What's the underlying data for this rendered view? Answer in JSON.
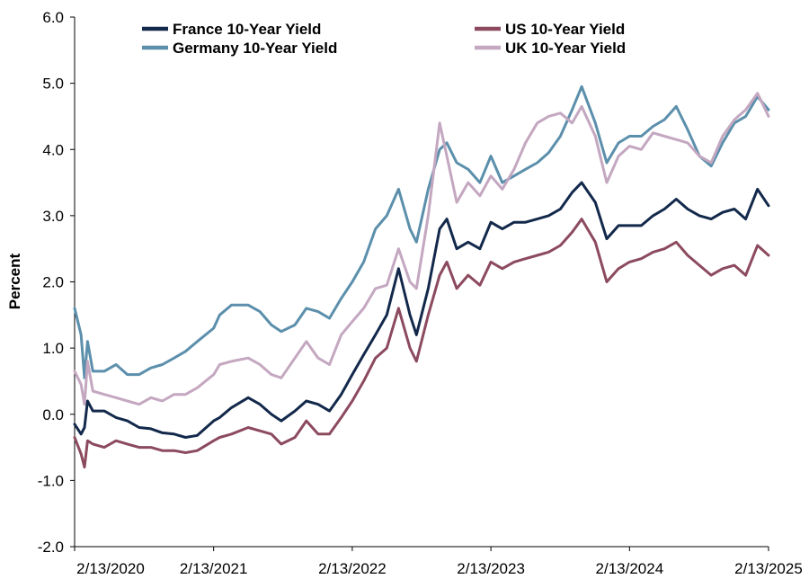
{
  "chart_data": {
    "type": "line",
    "title": "",
    "xlabel": "",
    "ylabel": "Percent",
    "ylim": [
      -2.0,
      6.0
    ],
    "y_ticks": [
      "-2.0",
      "-1.0",
      "0.0",
      "1.0",
      "2.0",
      "3.0",
      "4.0",
      "5.0",
      "6.0"
    ],
    "x_range": [
      "2020-02-13",
      "2025-02-13"
    ],
    "x_tick_labels": [
      "2/13/2020",
      "2/13/2021",
      "2/13/2022",
      "2/13/2023",
      "2/13/2024",
      "2/13/2025"
    ],
    "grid": false,
    "legend_position": "top",
    "series": [
      {
        "name": "France 10-Year Yield",
        "color": "#13294b",
        "points": [
          [
            "2020-02-13",
            -0.15
          ],
          [
            "2020-03-01",
            -0.3
          ],
          [
            "2020-03-10",
            -0.2
          ],
          [
            "2020-03-18",
            0.2
          ],
          [
            "2020-04-01",
            0.05
          ],
          [
            "2020-05-01",
            0.05
          ],
          [
            "2020-06-01",
            -0.05
          ],
          [
            "2020-07-01",
            -0.1
          ],
          [
            "2020-08-01",
            -0.2
          ],
          [
            "2020-09-01",
            -0.22
          ],
          [
            "2020-10-01",
            -0.28
          ],
          [
            "2020-11-01",
            -0.3
          ],
          [
            "2020-12-01",
            -0.35
          ],
          [
            "2021-01-01",
            -0.32
          ],
          [
            "2021-02-13",
            -0.1
          ],
          [
            "2021-03-01",
            -0.05
          ],
          [
            "2021-04-01",
            0.1
          ],
          [
            "2021-05-15",
            0.25
          ],
          [
            "2021-06-15",
            0.15
          ],
          [
            "2021-07-15",
            0.0
          ],
          [
            "2021-08-10",
            -0.1
          ],
          [
            "2021-09-15",
            0.05
          ],
          [
            "2021-10-15",
            0.2
          ],
          [
            "2021-11-15",
            0.15
          ],
          [
            "2021-12-15",
            0.05
          ],
          [
            "2022-01-15",
            0.3
          ],
          [
            "2022-02-13",
            0.6
          ],
          [
            "2022-03-15",
            0.9
          ],
          [
            "2022-04-15",
            1.2
          ],
          [
            "2022-05-15",
            1.5
          ],
          [
            "2022-06-15",
            2.2
          ],
          [
            "2022-07-15",
            1.5
          ],
          [
            "2022-08-01",
            1.2
          ],
          [
            "2022-09-01",
            1.9
          ],
          [
            "2022-10-01",
            2.8
          ],
          [
            "2022-10-20",
            2.95
          ],
          [
            "2022-11-15",
            2.5
          ],
          [
            "2022-12-15",
            2.6
          ],
          [
            "2023-01-15",
            2.5
          ],
          [
            "2023-02-13",
            2.9
          ],
          [
            "2023-03-15",
            2.8
          ],
          [
            "2023-04-15",
            2.9
          ],
          [
            "2023-05-15",
            2.9
          ],
          [
            "2023-06-15",
            2.95
          ],
          [
            "2023-07-15",
            3.0
          ],
          [
            "2023-08-15",
            3.1
          ],
          [
            "2023-09-15",
            3.35
          ],
          [
            "2023-10-10",
            3.5
          ],
          [
            "2023-11-15",
            3.2
          ],
          [
            "2023-12-15",
            2.65
          ],
          [
            "2024-01-15",
            2.85
          ],
          [
            "2024-02-13",
            2.85
          ],
          [
            "2024-03-15",
            2.85
          ],
          [
            "2024-04-15",
            3.0
          ],
          [
            "2024-05-15",
            3.1
          ],
          [
            "2024-06-15",
            3.25
          ],
          [
            "2024-07-15",
            3.1
          ],
          [
            "2024-08-15",
            3.0
          ],
          [
            "2024-09-15",
            2.95
          ],
          [
            "2024-10-15",
            3.05
          ],
          [
            "2024-11-15",
            3.1
          ],
          [
            "2024-12-15",
            2.95
          ],
          [
            "2025-01-15",
            3.4
          ],
          [
            "2025-02-13",
            3.15
          ]
        ]
      },
      {
        "name": "US 10-Year Yield",
        "color": "#8c4a5e",
        "points": [
          [
            "2020-02-13",
            -0.35
          ],
          [
            "2020-03-01",
            -0.6
          ],
          [
            "2020-03-10",
            -0.8
          ],
          [
            "2020-03-18",
            -0.4
          ],
          [
            "2020-04-01",
            -0.45
          ],
          [
            "2020-05-01",
            -0.5
          ],
          [
            "2020-06-01",
            -0.4
          ],
          [
            "2020-07-01",
            -0.45
          ],
          [
            "2020-08-01",
            -0.5
          ],
          [
            "2020-09-01",
            -0.5
          ],
          [
            "2020-10-01",
            -0.55
          ],
          [
            "2020-11-01",
            -0.55
          ],
          [
            "2020-12-01",
            -0.58
          ],
          [
            "2021-01-01",
            -0.55
          ],
          [
            "2021-02-13",
            -0.4
          ],
          [
            "2021-03-01",
            -0.35
          ],
          [
            "2021-04-01",
            -0.3
          ],
          [
            "2021-05-15",
            -0.2
          ],
          [
            "2021-06-15",
            -0.25
          ],
          [
            "2021-07-15",
            -0.3
          ],
          [
            "2021-08-10",
            -0.45
          ],
          [
            "2021-09-15",
            -0.35
          ],
          [
            "2021-10-15",
            -0.1
          ],
          [
            "2021-11-15",
            -0.3
          ],
          [
            "2021-12-15",
            -0.3
          ],
          [
            "2022-01-15",
            -0.05
          ],
          [
            "2022-02-13",
            0.2
          ],
          [
            "2022-03-15",
            0.5
          ],
          [
            "2022-04-15",
            0.85
          ],
          [
            "2022-05-15",
            1.0
          ],
          [
            "2022-06-15",
            1.6
          ],
          [
            "2022-07-15",
            1.0
          ],
          [
            "2022-08-01",
            0.8
          ],
          [
            "2022-09-01",
            1.5
          ],
          [
            "2022-10-01",
            2.1
          ],
          [
            "2022-10-20",
            2.3
          ],
          [
            "2022-11-15",
            1.9
          ],
          [
            "2022-12-15",
            2.1
          ],
          [
            "2023-01-15",
            1.95
          ],
          [
            "2023-02-13",
            2.3
          ],
          [
            "2023-03-15",
            2.2
          ],
          [
            "2023-04-15",
            2.3
          ],
          [
            "2023-05-15",
            2.35
          ],
          [
            "2023-06-15",
            2.4
          ],
          [
            "2023-07-15",
            2.45
          ],
          [
            "2023-08-15",
            2.55
          ],
          [
            "2023-09-15",
            2.75
          ],
          [
            "2023-10-10",
            2.95
          ],
          [
            "2023-11-15",
            2.6
          ],
          [
            "2023-12-15",
            2.0
          ],
          [
            "2024-01-15",
            2.2
          ],
          [
            "2024-02-13",
            2.3
          ],
          [
            "2024-03-15",
            2.35
          ],
          [
            "2024-04-15",
            2.45
          ],
          [
            "2024-05-15",
            2.5
          ],
          [
            "2024-06-15",
            2.6
          ],
          [
            "2024-07-15",
            2.4
          ],
          [
            "2024-08-15",
            2.25
          ],
          [
            "2024-09-15",
            2.1
          ],
          [
            "2024-10-15",
            2.2
          ],
          [
            "2024-11-15",
            2.25
          ],
          [
            "2024-12-15",
            2.1
          ],
          [
            "2025-01-15",
            2.55
          ],
          [
            "2025-02-13",
            2.4
          ]
        ]
      },
      {
        "name": "Germany 10-Year Yield",
        "color": "#5b8fab",
        "points": [
          [
            "2020-02-13",
            1.6
          ],
          [
            "2020-03-01",
            1.2
          ],
          [
            "2020-03-10",
            0.55
          ],
          [
            "2020-03-18",
            1.1
          ],
          [
            "2020-04-01",
            0.65
          ],
          [
            "2020-05-01",
            0.65
          ],
          [
            "2020-06-01",
            0.75
          ],
          [
            "2020-07-01",
            0.6
          ],
          [
            "2020-08-01",
            0.6
          ],
          [
            "2020-09-01",
            0.7
          ],
          [
            "2020-10-01",
            0.75
          ],
          [
            "2020-11-01",
            0.85
          ],
          [
            "2020-12-01",
            0.95
          ],
          [
            "2021-01-01",
            1.1
          ],
          [
            "2021-02-13",
            1.3
          ],
          [
            "2021-03-01",
            1.5
          ],
          [
            "2021-04-01",
            1.65
          ],
          [
            "2021-05-15",
            1.65
          ],
          [
            "2021-06-15",
            1.55
          ],
          [
            "2021-07-15",
            1.35
          ],
          [
            "2021-08-10",
            1.25
          ],
          [
            "2021-09-15",
            1.35
          ],
          [
            "2021-10-15",
            1.6
          ],
          [
            "2021-11-15",
            1.55
          ],
          [
            "2021-12-15",
            1.45
          ],
          [
            "2022-01-15",
            1.75
          ],
          [
            "2022-02-13",
            2.0
          ],
          [
            "2022-03-15",
            2.3
          ],
          [
            "2022-04-15",
            2.8
          ],
          [
            "2022-05-15",
            3.0
          ],
          [
            "2022-06-15",
            3.4
          ],
          [
            "2022-07-15",
            2.8
          ],
          [
            "2022-08-01",
            2.6
          ],
          [
            "2022-09-01",
            3.4
          ],
          [
            "2022-10-01",
            4.0
          ],
          [
            "2022-10-20",
            4.1
          ],
          [
            "2022-11-15",
            3.8
          ],
          [
            "2022-12-15",
            3.7
          ],
          [
            "2023-01-15",
            3.5
          ],
          [
            "2023-02-13",
            3.9
          ],
          [
            "2023-03-15",
            3.5
          ],
          [
            "2023-04-15",
            3.6
          ],
          [
            "2023-05-15",
            3.7
          ],
          [
            "2023-06-15",
            3.8
          ],
          [
            "2023-07-15",
            3.95
          ],
          [
            "2023-08-15",
            4.2
          ],
          [
            "2023-09-15",
            4.6
          ],
          [
            "2023-10-10",
            4.95
          ],
          [
            "2023-11-15",
            4.4
          ],
          [
            "2023-12-15",
            3.8
          ],
          [
            "2024-01-15",
            4.1
          ],
          [
            "2024-02-13",
            4.2
          ],
          [
            "2024-03-15",
            4.2
          ],
          [
            "2024-04-15",
            4.35
          ],
          [
            "2024-05-15",
            4.45
          ],
          [
            "2024-06-15",
            4.65
          ],
          [
            "2024-07-15",
            4.3
          ],
          [
            "2024-08-15",
            3.9
          ],
          [
            "2024-09-15",
            3.75
          ],
          [
            "2024-10-15",
            4.1
          ],
          [
            "2024-11-15",
            4.4
          ],
          [
            "2024-12-15",
            4.5
          ],
          [
            "2025-01-15",
            4.8
          ],
          [
            "2025-02-13",
            4.6
          ]
        ]
      },
      {
        "name": "UK 10-Year Yield",
        "color": "#c4a7c0",
        "points": [
          [
            "2020-02-13",
            0.65
          ],
          [
            "2020-03-01",
            0.45
          ],
          [
            "2020-03-10",
            0.15
          ],
          [
            "2020-03-18",
            0.8
          ],
          [
            "2020-04-01",
            0.35
          ],
          [
            "2020-05-01",
            0.3
          ],
          [
            "2020-06-01",
            0.25
          ],
          [
            "2020-07-01",
            0.2
          ],
          [
            "2020-08-01",
            0.15
          ],
          [
            "2020-09-01",
            0.25
          ],
          [
            "2020-10-01",
            0.2
          ],
          [
            "2020-11-01",
            0.3
          ],
          [
            "2020-12-01",
            0.3
          ],
          [
            "2021-01-01",
            0.4
          ],
          [
            "2021-02-13",
            0.6
          ],
          [
            "2021-03-01",
            0.75
          ],
          [
            "2021-04-01",
            0.8
          ],
          [
            "2021-05-15",
            0.85
          ],
          [
            "2021-06-15",
            0.75
          ],
          [
            "2021-07-15",
            0.6
          ],
          [
            "2021-08-10",
            0.55
          ],
          [
            "2021-09-15",
            0.85
          ],
          [
            "2021-10-15",
            1.1
          ],
          [
            "2021-11-15",
            0.85
          ],
          [
            "2021-12-15",
            0.75
          ],
          [
            "2022-01-15",
            1.2
          ],
          [
            "2022-02-13",
            1.4
          ],
          [
            "2022-03-15",
            1.6
          ],
          [
            "2022-04-15",
            1.9
          ],
          [
            "2022-05-15",
            1.95
          ],
          [
            "2022-06-15",
            2.5
          ],
          [
            "2022-07-15",
            2.0
          ],
          [
            "2022-08-01",
            1.9
          ],
          [
            "2022-09-01",
            3.0
          ],
          [
            "2022-10-01",
            4.4
          ],
          [
            "2022-10-20",
            3.9
          ],
          [
            "2022-11-15",
            3.2
          ],
          [
            "2022-12-15",
            3.5
          ],
          [
            "2023-01-15",
            3.3
          ],
          [
            "2023-02-13",
            3.6
          ],
          [
            "2023-03-15",
            3.4
          ],
          [
            "2023-04-15",
            3.7
          ],
          [
            "2023-05-15",
            4.1
          ],
          [
            "2023-06-15",
            4.4
          ],
          [
            "2023-07-15",
            4.5
          ],
          [
            "2023-08-15",
            4.55
          ],
          [
            "2023-09-15",
            4.4
          ],
          [
            "2023-10-10",
            4.65
          ],
          [
            "2023-11-15",
            4.2
          ],
          [
            "2023-12-15",
            3.5
          ],
          [
            "2024-01-15",
            3.9
          ],
          [
            "2024-02-13",
            4.05
          ],
          [
            "2024-03-15",
            4.0
          ],
          [
            "2024-04-15",
            4.25
          ],
          [
            "2024-05-15",
            4.2
          ],
          [
            "2024-06-15",
            4.15
          ],
          [
            "2024-07-15",
            4.1
          ],
          [
            "2024-08-15",
            3.9
          ],
          [
            "2024-09-15",
            3.8
          ],
          [
            "2024-10-15",
            4.2
          ],
          [
            "2024-11-15",
            4.45
          ],
          [
            "2024-12-15",
            4.6
          ],
          [
            "2025-01-15",
            4.85
          ],
          [
            "2025-02-13",
            4.5
          ]
        ]
      }
    ]
  }
}
